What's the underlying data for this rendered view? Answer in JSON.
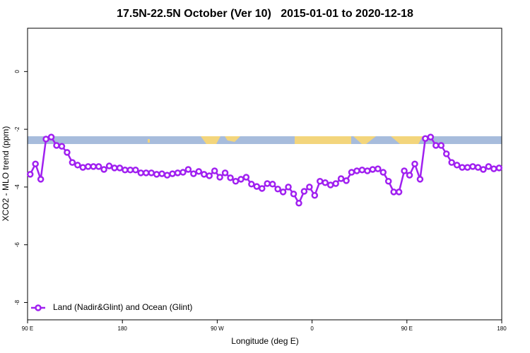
{
  "chart_data": {
    "type": "line",
    "title": "17.5N-22.5N October (Ver 10)   2015-01-01 to 2020-12-18",
    "x_label": "Longitude (deg E)",
    "y_label": "XCO2 - MLO trend (ppm)",
    "xlim": [
      90,
      540
    ],
    "ylim": [
      -8.6,
      1.5
    ],
    "xticks": [
      {
        "value": 90,
        "label": "90 E"
      },
      {
        "value": 180,
        "label": "180"
      },
      {
        "value": 270,
        "label": "90 W"
      },
      {
        "value": 360,
        "label": "0"
      },
      {
        "value": 450,
        "label": "90 E"
      },
      {
        "value": 540,
        "label": "180"
      }
    ],
    "yticks": [
      0,
      -2,
      -4,
      -6,
      -8
    ],
    "legend": "bottom-left",
    "x": [
      92.5,
      97.5,
      102.5,
      107.5,
      112.5,
      117.5,
      122.5,
      127.5,
      132.5,
      137.5,
      142.5,
      147.5,
      152.5,
      157.5,
      162.5,
      167.5,
      172.5,
      177.5,
      182.5,
      187.5,
      192.5,
      197.5,
      202.5,
      207.5,
      212.5,
      217.5,
      222.5,
      227.5,
      232.5,
      237.5,
      242.5,
      247.5,
      252.5,
      257.5,
      262.5,
      267.5,
      272.5,
      277.5,
      282.5,
      287.5,
      292.5,
      297.5,
      302.5,
      307.5,
      312.5,
      317.5,
      322.5,
      327.5,
      332.5,
      337.5,
      342.5,
      347.5,
      352.5,
      357.5,
      362.5,
      367.5,
      372.5,
      377.5,
      382.5,
      387.5,
      392.5,
      397.5,
      402.5,
      407.5,
      412.5,
      417.5,
      422.5,
      427.5,
      432.5,
      437.5,
      442.5,
      447.5,
      452.5,
      457.5,
      462.5,
      467.5,
      472.5,
      477.5,
      482.5,
      487.5,
      492.5,
      497.5,
      502.5,
      507.5,
      512.5,
      517.5,
      522.5,
      527.5,
      532.5,
      537.5
    ],
    "series": [
      {
        "name": "Land (Nadir&Glint) and Ocean (Glint)",
        "color": "#a020f0",
        "values": [
          -3.56,
          -3.2,
          -3.73,
          -2.34,
          -2.27,
          -2.56,
          -2.59,
          -2.8,
          -3.15,
          -3.24,
          -3.32,
          -3.29,
          -3.29,
          -3.29,
          -3.39,
          -3.27,
          -3.34,
          -3.34,
          -3.41,
          -3.41,
          -3.41,
          -3.51,
          -3.51,
          -3.51,
          -3.56,
          -3.54,
          -3.59,
          -3.54,
          -3.51,
          -3.49,
          -3.39,
          -3.54,
          -3.46,
          -3.56,
          -3.61,
          -3.44,
          -3.66,
          -3.51,
          -3.68,
          -3.8,
          -3.73,
          -3.66,
          -3.9,
          -3.98,
          -4.05,
          -3.88,
          -3.9,
          -4.07,
          -4.17,
          -4.0,
          -4.24,
          -4.56,
          -4.15,
          -4.0,
          -4.29,
          -3.8,
          -3.85,
          -3.93,
          -3.88,
          -3.71,
          -3.78,
          -3.49,
          -3.44,
          -3.41,
          -3.44,
          -3.39,
          -3.37,
          -3.49,
          -3.8,
          -4.17,
          -4.17,
          -3.44,
          -3.59,
          -3.2,
          -3.73,
          -2.32,
          -2.27,
          -2.56,
          -2.56,
          -2.85,
          -3.15,
          -3.24,
          -3.32,
          -3.32,
          -3.29,
          -3.32,
          -3.39,
          -3.29,
          -3.37,
          -3.34
        ]
      }
    ]
  }
}
